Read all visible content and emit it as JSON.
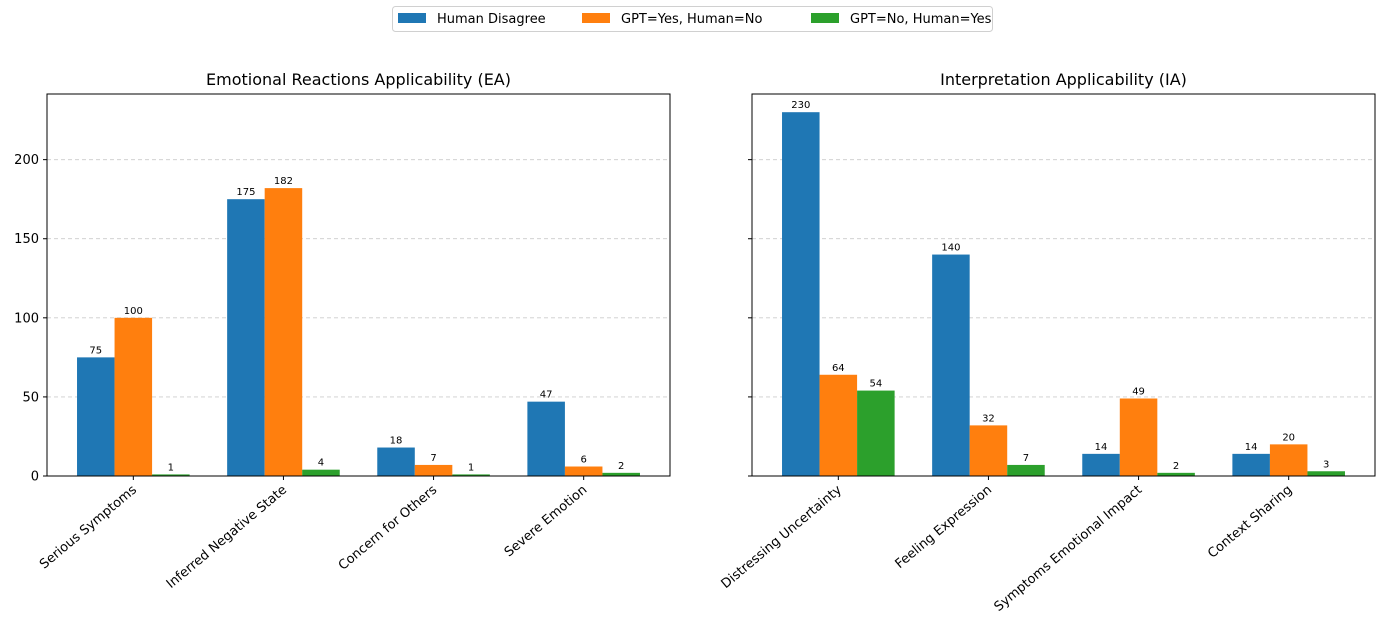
{
  "legend": {
    "entries": [
      {
        "name": "Human Disagree",
        "color": "#1f77b4"
      },
      {
        "name": "GPT=Yes, Human=No",
        "color": "#ff7f0e"
      },
      {
        "name": "GPT=No, Human=Yes",
        "color": "#2ca02c"
      }
    ],
    "placement": "top-center"
  },
  "chart_data": [
    {
      "type": "bar",
      "title": "Emotional Reactions Applicability (EA)",
      "categories": [
        "Serious Symptoms",
        "Inferred Negative State",
        "Concern for Others",
        "Severe Emotion"
      ],
      "series": [
        {
          "name": "Human Disagree",
          "color": "#1f77b4",
          "values": [
            75,
            175,
            18,
            47
          ]
        },
        {
          "name": "GPT=Yes, Human=No",
          "color": "#ff7f0e",
          "values": [
            100,
            182,
            7,
            6
          ]
        },
        {
          "name": "GPT=No, Human=Yes",
          "color": "#2ca02c",
          "values": [
            1,
            4,
            1,
            2
          ]
        }
      ],
      "ylim": [
        0,
        241.5
      ],
      "yticks": [
        0,
        50,
        100,
        150,
        200
      ],
      "grid": "y-dashed",
      "xlabel": "",
      "ylabel": ""
    },
    {
      "type": "bar",
      "title": "Interpretation Applicability (IA)",
      "categories": [
        "Distressing Uncertainty",
        "Feeling Expression",
        "Symptoms Emotional Impact",
        "Context Sharing"
      ],
      "series": [
        {
          "name": "Human Disagree",
          "color": "#1f77b4",
          "values": [
            230,
            140,
            14,
            14
          ]
        },
        {
          "name": "GPT=Yes, Human=No",
          "color": "#ff7f0e",
          "values": [
            64,
            32,
            49,
            20
          ]
        },
        {
          "name": "GPT=No, Human=Yes",
          "color": "#2ca02c",
          "values": [
            54,
            7,
            2,
            3
          ]
        }
      ],
      "ylim": [
        0,
        241.5
      ],
      "yticks": [
        0,
        50,
        100,
        150,
        200
      ],
      "shared_y": true,
      "grid": "y-dashed",
      "xlabel": "",
      "ylabel": ""
    }
  ]
}
